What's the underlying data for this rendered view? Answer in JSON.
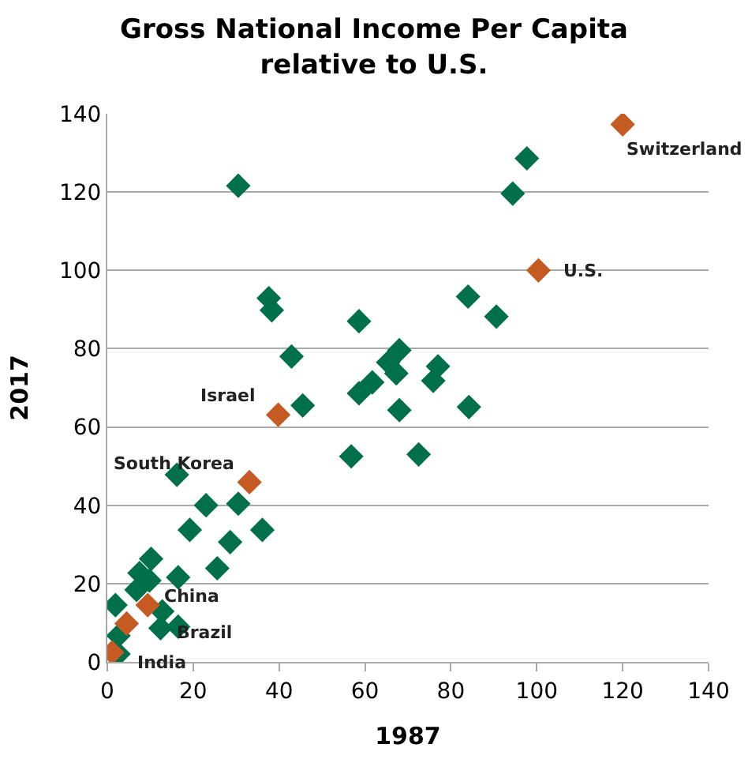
{
  "chart_data": {
    "type": "scatter",
    "title": "Gross National Income Per Capita\nrelative to U.S.",
    "xlabel": "1987",
    "ylabel": "2017",
    "xlim": [
      0,
      140
    ],
    "xticks": [
      0,
      20,
      40,
      60,
      80,
      100,
      120,
      140
    ],
    "ylim": [
      0,
      140
    ],
    "yticks": [
      0,
      20,
      40,
      60,
      80,
      100,
      120,
      140
    ],
    "grid": "y",
    "marker": "diamond",
    "series": [
      {
        "color": "#00704a",
        "x": [
          30.5,
          37.6,
          38.3,
          42.9,
          58.6,
          68,
          65.4,
          67.3,
          61.7,
          58.6,
          45.5,
          68,
          56.8,
          72.5,
          84.2,
          75.9,
          77,
          84,
          90.6,
          94.4,
          97.7,
          16.2,
          23,
          30.5,
          19.2,
          28.6,
          36.1,
          25.6,
          16.5,
          10.2,
          7.5,
          9.8,
          6.8,
          1.9,
          12.8,
          12.4,
          16.5,
          2.6,
          2.6
        ],
        "values": [
          121.6,
          92.9,
          89.8,
          78,
          87,
          79.6,
          76.5,
          73.7,
          71.4,
          68.6,
          65.5,
          64.3,
          52.5,
          53,
          65.1,
          71.8,
          75.5,
          93.3,
          88.2,
          119.6,
          128.6,
          47.8,
          40,
          40.4,
          33.7,
          30.6,
          33.7,
          23.9,
          21.6,
          26.3,
          22.7,
          20.8,
          18.4,
          14.5,
          12.9,
          8.6,
          9,
          6.7,
          2
        ]
      },
      {
        "color": "#c55a22",
        "x": [
          120,
          100.4,
          39.8,
          33.1,
          9.4,
          4.5,
          1.1
        ],
        "values": [
          137.3,
          100,
          63.1,
          45.9,
          14.5,
          9.8,
          2.4
        ]
      }
    ],
    "annotations": [
      {
        "text": "Switzerland",
        "x": 120,
        "y": 137.3
      },
      {
        "text": "U.S.",
        "x": 100.4,
        "y": 100
      },
      {
        "text": "Israel",
        "x": 39.8,
        "y": 63.1
      },
      {
        "text": "South Korea",
        "x": 33.1,
        "y": 45.9
      },
      {
        "text": "China",
        "x": 9.4,
        "y": 14.5
      },
      {
        "text": "Brazil",
        "x": 4.5,
        "y": 9.8
      },
      {
        "text": "India",
        "x": 1.1,
        "y": 2.4
      }
    ]
  }
}
